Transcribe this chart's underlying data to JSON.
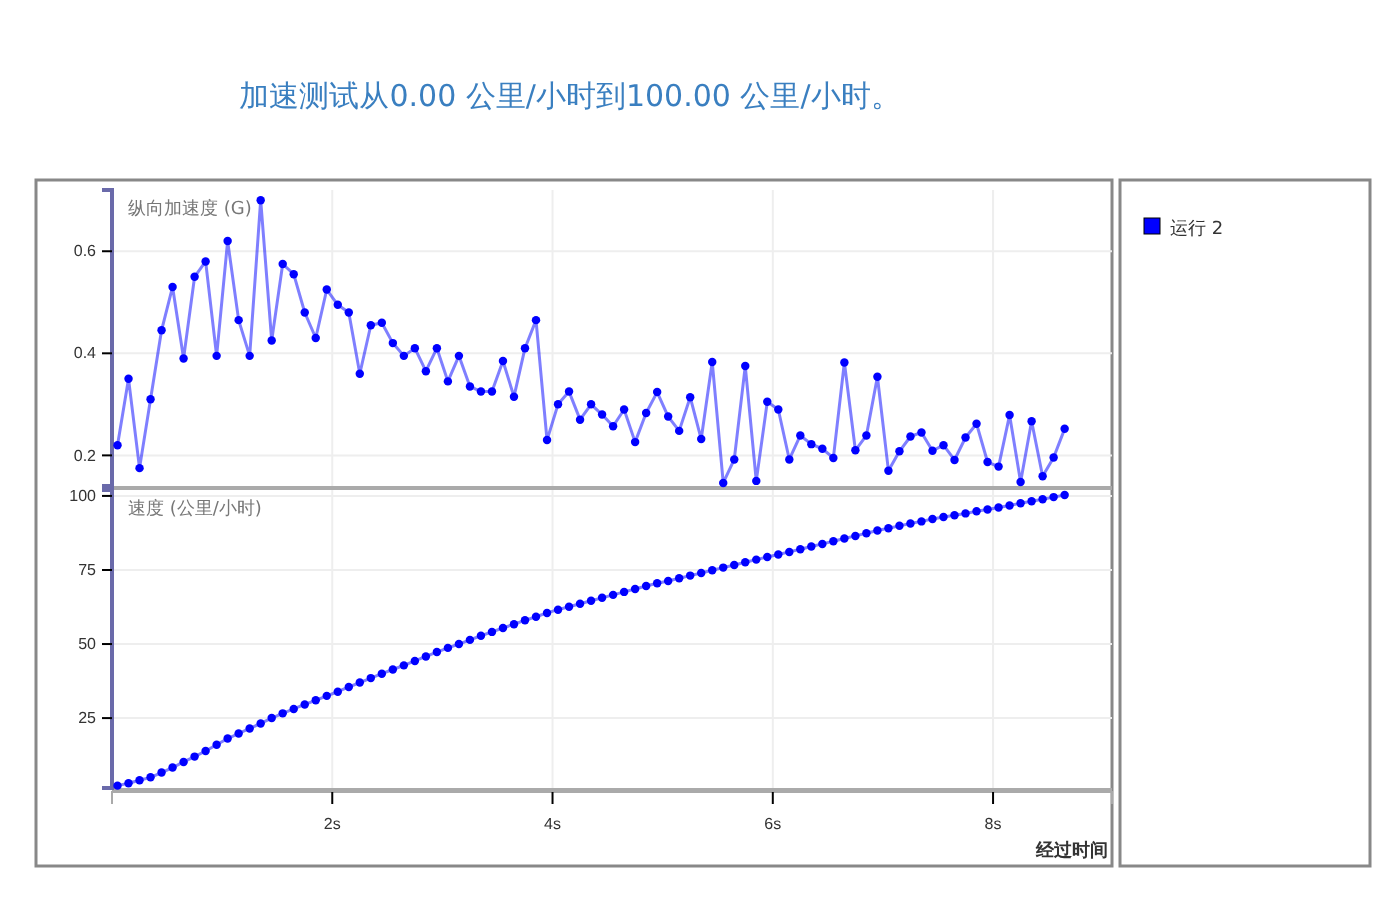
{
  "chart_data": [
    {
      "type": "line",
      "title": "加速测试从0.00  公里/小时到100.00 公里/小时。",
      "ylabel": "纵向加速度 (G)",
      "legend": "right",
      "marker": "circle",
      "grid": true,
      "tick_labels": "y",
      "xlim": [
        0.0,
        9.08
      ],
      "xticks": [
        {
          "value": 2,
          "label": null
        },
        {
          "value": 4,
          "label": null
        },
        {
          "value": 6,
          "label": null
        },
        {
          "value": 8,
          "label": null
        }
      ],
      "ylim": [
        0.14,
        0.72
      ],
      "yticks": [
        0.2,
        0.4,
        0.6
      ],
      "x": [
        0.05,
        0.15,
        0.25,
        0.35,
        0.45,
        0.55,
        0.65,
        0.75,
        0.85,
        0.95,
        1.05,
        1.15,
        1.25,
        1.35,
        1.45,
        1.55,
        1.65,
        1.75,
        1.85,
        1.95,
        2.05,
        2.15,
        2.25,
        2.35,
        2.45,
        2.55,
        2.65,
        2.75,
        2.85,
        2.95,
        3.05,
        3.15,
        3.25,
        3.35,
        3.45,
        3.55,
        3.65,
        3.75,
        3.85,
        3.95,
        4.05,
        4.15,
        4.25,
        4.35,
        4.45,
        4.55,
        4.65,
        4.75,
        4.85,
        4.95,
        5.05,
        5.15,
        5.25,
        5.35,
        5.45,
        5.55,
        5.65,
        5.75,
        5.85,
        5.95,
        6.05,
        6.15,
        6.25,
        6.35,
        6.45,
        6.55,
        6.65,
        6.75,
        6.85,
        6.95,
        7.05,
        7.15,
        7.25,
        7.35,
        7.45,
        7.55,
        7.65,
        7.75,
        7.85,
        7.95,
        8.05,
        8.15,
        8.25,
        8.35,
        8.45,
        8.55,
        8.65
      ],
      "series": [
        {
          "name": "运行 2",
          "color": "#0000ff",
          "values": [
            0.22,
            0.35,
            0.175,
            0.31,
            0.445,
            0.53,
            0.39,
            0.55,
            0.58,
            0.395,
            0.62,
            0.465,
            0.395,
            0.7,
            0.425,
            0.575,
            0.555,
            0.48,
            0.43,
            0.525,
            0.495,
            0.48,
            0.36,
            0.455,
            0.46,
            0.42,
            0.395,
            0.41,
            0.365,
            0.41,
            0.345,
            0.395,
            0.335,
            0.325,
            0.325,
            0.385,
            0.315,
            0.41,
            0.465,
            0.23,
            0.3,
            0.325,
            0.27,
            0.3,
            0.28,
            0.257,
            0.29,
            0.226,
            0.283,
            0.324,
            0.276,
            0.248,
            0.314,
            0.232,
            0.383,
            0.146,
            0.192,
            0.375,
            0.15,
            0.305,
            0.29,
            0.192,
            0.239,
            0.222,
            0.213,
            0.195,
            0.382,
            0.21,
            0.239,
            0.354,
            0.17,
            0.208,
            0.237,
            0.245,
            0.209,
            0.22,
            0.191,
            0.235,
            0.262,
            0.187,
            0.178,
            0.279,
            0.148,
            0.267,
            0.159,
            0.196,
            0.252
          ]
        }
      ]
    },
    {
      "type": "line",
      "ylabel": "速度 (公里/小时)",
      "xlabel": "经过时间",
      "marker": "circle",
      "grid": true,
      "xlim": [
        0.0,
        9.08
      ],
      "xticks": [
        {
          "value": 2,
          "label": "2s"
        },
        {
          "value": 4,
          "label": "4s"
        },
        {
          "value": 6,
          "label": "6s"
        },
        {
          "value": 8,
          "label": "8s"
        }
      ],
      "ylim": [
        1.4,
        102
      ],
      "yticks": [
        25,
        50,
        75,
        100
      ],
      "x": [
        0.05,
        0.15,
        0.25,
        0.35,
        0.45,
        0.55,
        0.65,
        0.75,
        0.85,
        0.95,
        1.05,
        1.15,
        1.25,
        1.35,
        1.45,
        1.55,
        1.65,
        1.75,
        1.85,
        1.95,
        2.05,
        2.15,
        2.25,
        2.35,
        2.45,
        2.55,
        2.65,
        2.75,
        2.85,
        2.95,
        3.05,
        3.15,
        3.25,
        3.35,
        3.45,
        3.55,
        3.65,
        3.75,
        3.85,
        3.95,
        4.05,
        4.15,
        4.25,
        4.35,
        4.45,
        4.55,
        4.65,
        4.75,
        4.85,
        4.95,
        5.05,
        5.15,
        5.25,
        5.35,
        5.45,
        5.55,
        5.65,
        5.75,
        5.85,
        5.95,
        6.05,
        6.15,
        6.25,
        6.35,
        6.45,
        6.55,
        6.65,
        6.75,
        6.85,
        6.95,
        7.05,
        7.15,
        7.25,
        7.35,
        7.45,
        7.55,
        7.65,
        7.75,
        7.85,
        7.95,
        8.05,
        8.15,
        8.25,
        8.35,
        8.45,
        8.55,
        8.65
      ],
      "series": [
        {
          "color": "#0000ff",
          "values": [
            2.2,
            3.0,
            4.0,
            5.0,
            6.6,
            8.3,
            10.2,
            12.0,
            13.9,
            16.0,
            18.1,
            19.8,
            21.5,
            23.2,
            25.0,
            26.6,
            28.1,
            29.6,
            31.0,
            32.5,
            33.9,
            35.5,
            37.0,
            38.5,
            40.0,
            41.4,
            42.8,
            44.3,
            45.8,
            47.3,
            48.7,
            50.0,
            51.4,
            52.8,
            54.1,
            55.4,
            56.7,
            58.0,
            59.2,
            60.5,
            61.6,
            62.6,
            63.6,
            64.6,
            65.6,
            66.6,
            67.6,
            68.6,
            69.6,
            70.5,
            71.3,
            72.2,
            73.1,
            74.0,
            74.9,
            75.8,
            76.7,
            77.6,
            78.5,
            79.4,
            80.2,
            81.1,
            82.0,
            82.9,
            83.8,
            84.7,
            85.6,
            86.5,
            87.4,
            88.3,
            89.1,
            89.9,
            90.7,
            91.4,
            92.2,
            92.9,
            93.5,
            94.1,
            94.8,
            95.4,
            96.1,
            96.8,
            97.5,
            98.2,
            98.9,
            99.6,
            100.3
          ]
        }
      ]
    }
  ]
}
